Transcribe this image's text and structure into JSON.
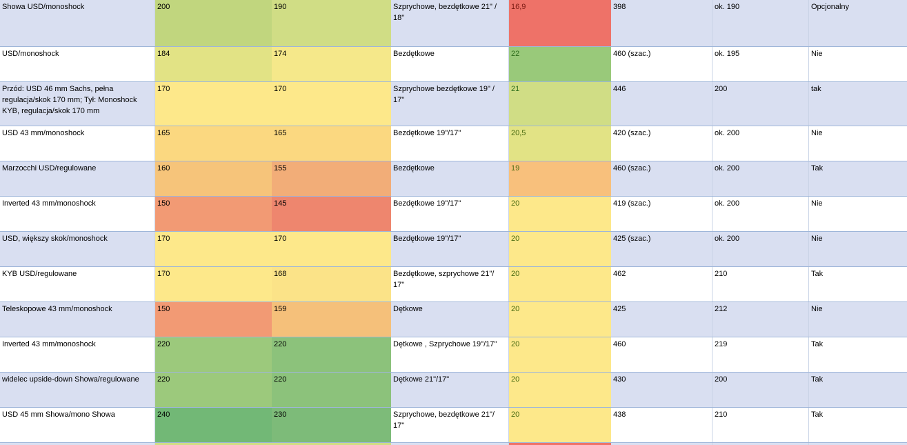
{
  "rows": [
    {
      "suspension": "Showa USD/monoshock",
      "travel_front": "200",
      "travel_front_color": "#c1d67e",
      "travel_rear": "190",
      "travel_rear_color": "#d0dd85",
      "wheels": "Szprychowe, bezdętkowe 21\" / 18\"",
      "tank": "16,9",
      "tank_color": "#ee7268",
      "weight": "398",
      "seat": "ok. 190",
      "option": "Opcjonalny"
    },
    {
      "suspension": "USD/monoshock",
      "travel_front": "184",
      "travel_front_color": "#e2e385",
      "travel_rear": "174",
      "travel_rear_color": "#f5e88a",
      "wheels": "Bezdętkowe",
      "tank": "22",
      "tank_color": "#99c97a",
      "weight": "460 (szac.)",
      "seat": "ok. 195",
      "option": "Nie"
    },
    {
      "suspension": "Przód: USD 46 mm Sachs, pełna regulacja/skok 170 mm; Tył: Monoshock KYB, regulacja/skok 170 mm",
      "travel_front": "170",
      "travel_front_color": "#fde88a",
      "travel_rear": "170",
      "travel_rear_color": "#fde88a",
      "wheels": "Szprychowe bezdętkowe 19\" / 17\"",
      "tank": "21",
      "tank_color": "#d0dd85",
      "weight": "446",
      "seat": "200",
      "option": "tak"
    },
    {
      "suspension": "USD 43 mm/monoshock",
      "travel_front": "165",
      "travel_front_color": "#fbd880",
      "travel_rear": "165",
      "travel_rear_color": "#fbd880",
      "wheels": "Bezdętkowe 19\"/17\"",
      "tank": "20,5",
      "tank_color": "#e2e385",
      "weight": "420 (szac.)",
      "seat": "ok. 200",
      "option": "Nie"
    },
    {
      "suspension": "Marzocchi USD/regulowane",
      "travel_front": "160",
      "travel_front_color": "#f6c47a",
      "travel_rear": "155",
      "travel_rear_color": "#f2ad78",
      "wheels": "Bezdętkowe",
      "tank": "19",
      "tank_color": "#f8c07c",
      "weight": "460 (szac.)",
      "seat": "ok. 200",
      "option": "Tak"
    },
    {
      "suspension": "Inverted 43 mm/monoshock",
      "travel_front": "150",
      "travel_front_color": "#f29a74",
      "travel_rear": "145",
      "travel_rear_color": "#ee866e",
      "wheels": "Bezdętkowe 19\"/17\"",
      "tank": "20",
      "tank_color": "#fde88a",
      "weight": "419 (szac.)",
      "seat": "ok. 200",
      "option": "Nie"
    },
    {
      "suspension": "USD, większy skok/monoshock",
      "travel_front": "170",
      "travel_front_color": "#fde88a",
      "travel_rear": "170",
      "travel_rear_color": "#fde88a",
      "wheels": "Bezdętkowe 19\"/17\"",
      "tank": "20",
      "tank_color": "#fde88a",
      "weight": "425 (szac.)",
      "seat": "ok. 200",
      "option": "Nie"
    },
    {
      "suspension": "KYB USD/regulowane",
      "travel_front": "170",
      "travel_front_color": "#fde88a",
      "travel_rear": "168",
      "travel_rear_color": "#fbe388",
      "wheels": "Bezdętkowe, szprychowe 21\"/ 17\"",
      "tank": "20",
      "tank_color": "#fde88a",
      "weight": "462",
      "seat": "210",
      "option": "Tak"
    },
    {
      "suspension": "Teleskopowe 43 mm/monoshock",
      "travel_front": "150",
      "travel_front_color": "#f29a74",
      "travel_rear": "159",
      "travel_rear_color": "#f5c07a",
      "wheels": "Dętkowe",
      "tank": "20",
      "tank_color": "#fde88a",
      "weight": "425",
      "seat": "212",
      "option": "Nie"
    },
    {
      "suspension": "Inverted 43 mm/monoshock",
      "travel_front": "220",
      "travel_front_color": "#9cc97c",
      "travel_rear": "220",
      "travel_rear_color": "#8cc27b",
      "wheels": "Dętkowe , Szprychowe 19\"/17\"",
      "tank": "20",
      "tank_color": "#fde88a",
      "weight": "460",
      "seat": "219",
      "option": "Tak"
    },
    {
      "suspension": "widelec upside-down Showa/regulowane",
      "travel_front": "220",
      "travel_front_color": "#9cc97c",
      "travel_rear": "220",
      "travel_rear_color": "#8cc27b",
      "wheels": "Dętkowe 21\"/17\"",
      "tank": "20",
      "tank_color": "#fde88a",
      "weight": "430",
      "seat": "200",
      "option": "Tak"
    },
    {
      "suspension": "USD 45 mm Showa/mono Showa",
      "travel_front": "240",
      "travel_front_color": "#72b876",
      "travel_rear": "230",
      "travel_rear_color": "#7dbb79",
      "wheels": "Szprychowe, bezdętkowe 21\"/ 17\"",
      "tank": "20",
      "tank_color": "#fde88a",
      "weight": "438",
      "seat": "210",
      "option": "Tak"
    },
    {
      "suspension": "",
      "travel_front": "",
      "travel_front_color": "#d0dd85",
      "travel_rear": "",
      "travel_rear_color": "#d0dd85",
      "wheels": "",
      "tank": "",
      "tank_color": "#ee7268",
      "weight": "",
      "seat": "",
      "option": ""
    }
  ]
}
